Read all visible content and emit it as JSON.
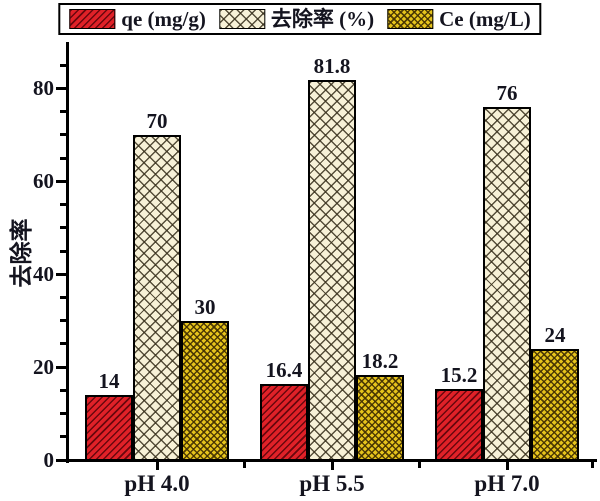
{
  "chart_data": {
    "type": "bar",
    "title": "",
    "xlabel": "",
    "ylabel": "去除率",
    "ylim": [
      0,
      90
    ],
    "yticks": [
      0,
      20,
      40,
      60,
      80
    ],
    "minor_tick_step": 5,
    "grid": false,
    "legend_position": "top-center",
    "categories": [
      "pH 4.0",
      "pH 5.5",
      "pH 7.0"
    ],
    "series": [
      {
        "name": "qe (mg/g)",
        "values": [
          14,
          16.4,
          15.2
        ],
        "color": "#e02128",
        "pattern": "diagonal"
      },
      {
        "name": "去除率 (%)",
        "values": [
          70,
          81.8,
          76
        ],
        "color": "#f7f1d7",
        "pattern": "weave"
      },
      {
        "name": "Ce (mg/L)",
        "values": [
          30,
          18.2,
          24
        ],
        "color": "#e6c41c",
        "pattern": "crosshatch"
      }
    ],
    "value_labels": [
      [
        "14",
        "70",
        "30"
      ],
      [
        "16.4",
        "81.8",
        "18.2"
      ],
      [
        "15.2",
        "76",
        "24"
      ]
    ],
    "axis_color": "#000000",
    "text_color": "#14141f"
  }
}
